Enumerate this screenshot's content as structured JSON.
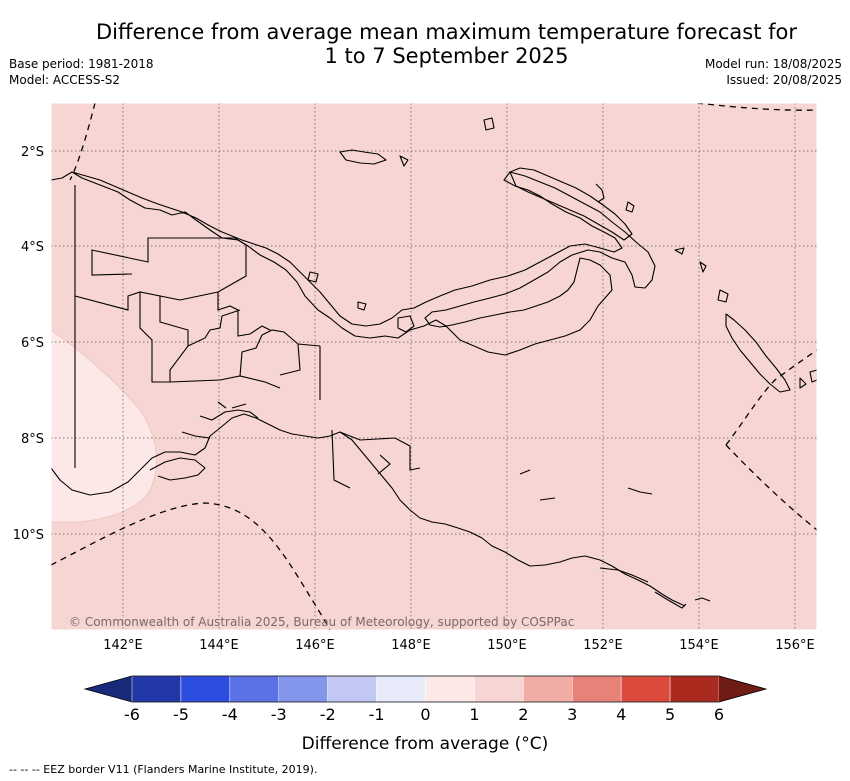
{
  "title": {
    "line1": "Difference from average mean maximum temperature forecast for",
    "line2": "1 to 7 September 2025"
  },
  "meta_left": {
    "base_period": "Base period: 1981-2018",
    "model": "Model: ACCESS-S2"
  },
  "meta_right": {
    "model_run": "Model run: 18/08/2025",
    "issued": "Issued: 20/08/2025"
  },
  "map": {
    "lon_ticks": [
      "142°E",
      "144°E",
      "146°E",
      "148°E",
      "150°E",
      "152°E",
      "154°E",
      "156°E"
    ],
    "lat_ticks": [
      "2°S",
      "4°S",
      "6°S",
      "8°S",
      "10°S"
    ],
    "copyright": "© Commonwealth of Australia 2025, Bureau of Meteorology, supported by COSPPac",
    "colors": {
      "anomaly_1_2": "#f6d5d2",
      "anomaly_0_1": "#fce9e7",
      "land_outline": "#000000",
      "graticule": "#555555"
    }
  },
  "colorbar": {
    "title": "Difference from average (°C)",
    "tick_labels": [
      "-6",
      "-5",
      "-4",
      "-3",
      "-2",
      "-1",
      "0",
      "1",
      "2",
      "3",
      "4",
      "5",
      "6"
    ],
    "extend_low_color": "#1a2a7a",
    "extend_high_color": "#6e1c14",
    "bins": [
      {
        "range": "-6 to -5",
        "color": "#2237a8"
      },
      {
        "range": "-5 to -4",
        "color": "#2c4ddf"
      },
      {
        "range": "-4 to -3",
        "color": "#5a72e6"
      },
      {
        "range": "-3 to -2",
        "color": "#8496ec"
      },
      {
        "range": "-2 to -1",
        "color": "#c1c8f3"
      },
      {
        "range": "-1 to 0",
        "color": "#e6eaf9"
      },
      {
        "range": "0 to 1",
        "color": "#fce9e7"
      },
      {
        "range": "1 to 2",
        "color": "#f6d5d2"
      },
      {
        "range": "2 to 3",
        "color": "#f0aca5"
      },
      {
        "range": "3 to 4",
        "color": "#e88177"
      },
      {
        "range": "4 to 5",
        "color": "#db4a3d"
      },
      {
        "range": "5 to 6",
        "color": "#aa2a20"
      }
    ]
  },
  "footer": {
    "legend": "--  --  -- EEZ border V11 (Flanders Marine Institute, 2019)."
  }
}
